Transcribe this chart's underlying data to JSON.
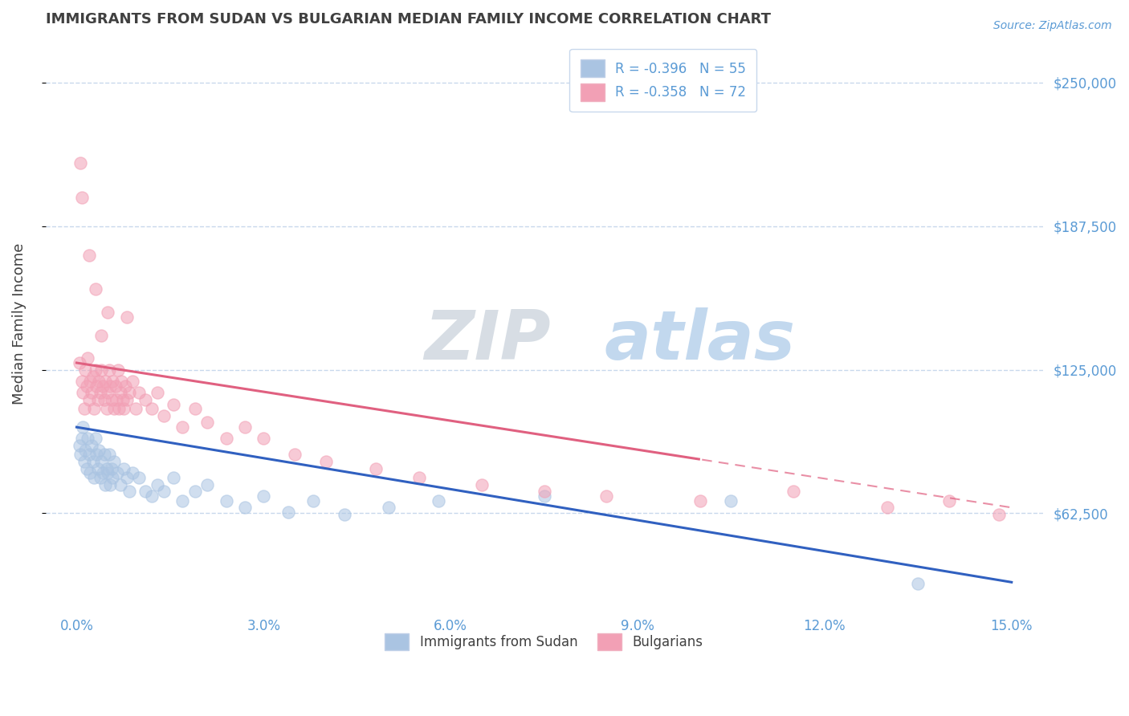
{
  "title": "IMMIGRANTS FROM SUDAN VS BULGARIAN MEDIAN FAMILY INCOME CORRELATION CHART",
  "source": "Source: ZipAtlas.com",
  "ylabel": "Median Family Income",
  "watermark_zip": "ZIP",
  "watermark_atlas": "atlas",
  "xmin": 0.0,
  "xmax": 15.0,
  "ymin": 20000,
  "ymax": 270000,
  "yticks": [
    62500,
    125000,
    187500,
    250000
  ],
  "ytick_labels": [
    "$62,500",
    "$125,000",
    "$187,500",
    "$250,000"
  ],
  "xticks": [
    0.0,
    3.0,
    6.0,
    9.0,
    12.0,
    15.0
  ],
  "xtick_labels": [
    "0.0%",
    "3.0%",
    "6.0%",
    "9.0%",
    "12.0%",
    "15.0%"
  ],
  "legend1_label": "R = -0.396   N = 55",
  "legend2_label": "R = -0.358   N = 72",
  "legend_sublabel1": "Immigrants from Sudan",
  "legend_sublabel2": "Bulgarians",
  "color_blue": "#aac4e2",
  "color_pink": "#f2a0b5",
  "line_blue": "#3060c0",
  "line_pink": "#e06080",
  "axis_color": "#5b9bd5",
  "title_color": "#404040",
  "bg_color": "#ffffff",
  "grid_color": "#c8d8ec",
  "sudan_x": [
    0.04,
    0.06,
    0.08,
    0.1,
    0.12,
    0.14,
    0.16,
    0.18,
    0.2,
    0.22,
    0.24,
    0.26,
    0.28,
    0.3,
    0.32,
    0.34,
    0.36,
    0.38,
    0.4,
    0.42,
    0.44,
    0.46,
    0.48,
    0.5,
    0.52,
    0.54,
    0.56,
    0.58,
    0.6,
    0.65,
    0.7,
    0.75,
    0.8,
    0.85,
    0.9,
    1.0,
    1.1,
    1.2,
    1.3,
    1.4,
    1.55,
    1.7,
    1.9,
    2.1,
    2.4,
    2.7,
    3.0,
    3.4,
    3.8,
    4.3,
    5.0,
    5.8,
    7.5,
    10.5,
    13.5
  ],
  "sudan_y": [
    92000,
    88000,
    95000,
    100000,
    85000,
    90000,
    82000,
    95000,
    88000,
    80000,
    92000,
    85000,
    78000,
    95000,
    88000,
    82000,
    90000,
    78000,
    85000,
    80000,
    88000,
    75000,
    82000,
    80000,
    88000,
    75000,
    82000,
    78000,
    85000,
    80000,
    75000,
    82000,
    78000,
    72000,
    80000,
    78000,
    72000,
    70000,
    75000,
    72000,
    78000,
    68000,
    72000,
    75000,
    68000,
    65000,
    70000,
    63000,
    68000,
    62000,
    65000,
    68000,
    70000,
    68000,
    32000
  ],
  "bulgarian_x": [
    0.05,
    0.08,
    0.1,
    0.12,
    0.14,
    0.16,
    0.18,
    0.2,
    0.22,
    0.24,
    0.26,
    0.28,
    0.3,
    0.32,
    0.34,
    0.36,
    0.38,
    0.4,
    0.42,
    0.44,
    0.46,
    0.48,
    0.5,
    0.52,
    0.54,
    0.56,
    0.58,
    0.6,
    0.62,
    0.64,
    0.66,
    0.68,
    0.7,
    0.72,
    0.74,
    0.76,
    0.78,
    0.8,
    0.85,
    0.9,
    0.95,
    1.0,
    1.1,
    1.2,
    1.3,
    1.4,
    1.55,
    1.7,
    1.9,
    2.1,
    2.4,
    2.7,
    3.0,
    3.5,
    4.0,
    4.8,
    5.5,
    6.5,
    7.5,
    8.5,
    10.0,
    11.5,
    13.0,
    14.0,
    14.8,
    0.06,
    0.08,
    0.3,
    0.5,
    0.8,
    0.2,
    0.4
  ],
  "bulgarian_y": [
    128000,
    120000,
    115000,
    108000,
    125000,
    118000,
    130000,
    112000,
    120000,
    115000,
    122000,
    108000,
    125000,
    118000,
    112000,
    120000,
    115000,
    125000,
    118000,
    112000,
    120000,
    108000,
    115000,
    125000,
    118000,
    112000,
    120000,
    108000,
    118000,
    112000,
    125000,
    108000,
    115000,
    120000,
    112000,
    108000,
    118000,
    112000,
    115000,
    120000,
    108000,
    115000,
    112000,
    108000,
    115000,
    105000,
    110000,
    100000,
    108000,
    102000,
    95000,
    100000,
    95000,
    88000,
    85000,
    82000,
    78000,
    75000,
    72000,
    70000,
    68000,
    72000,
    65000,
    68000,
    62000,
    215000,
    200000,
    160000,
    150000,
    148000,
    175000,
    140000
  ]
}
